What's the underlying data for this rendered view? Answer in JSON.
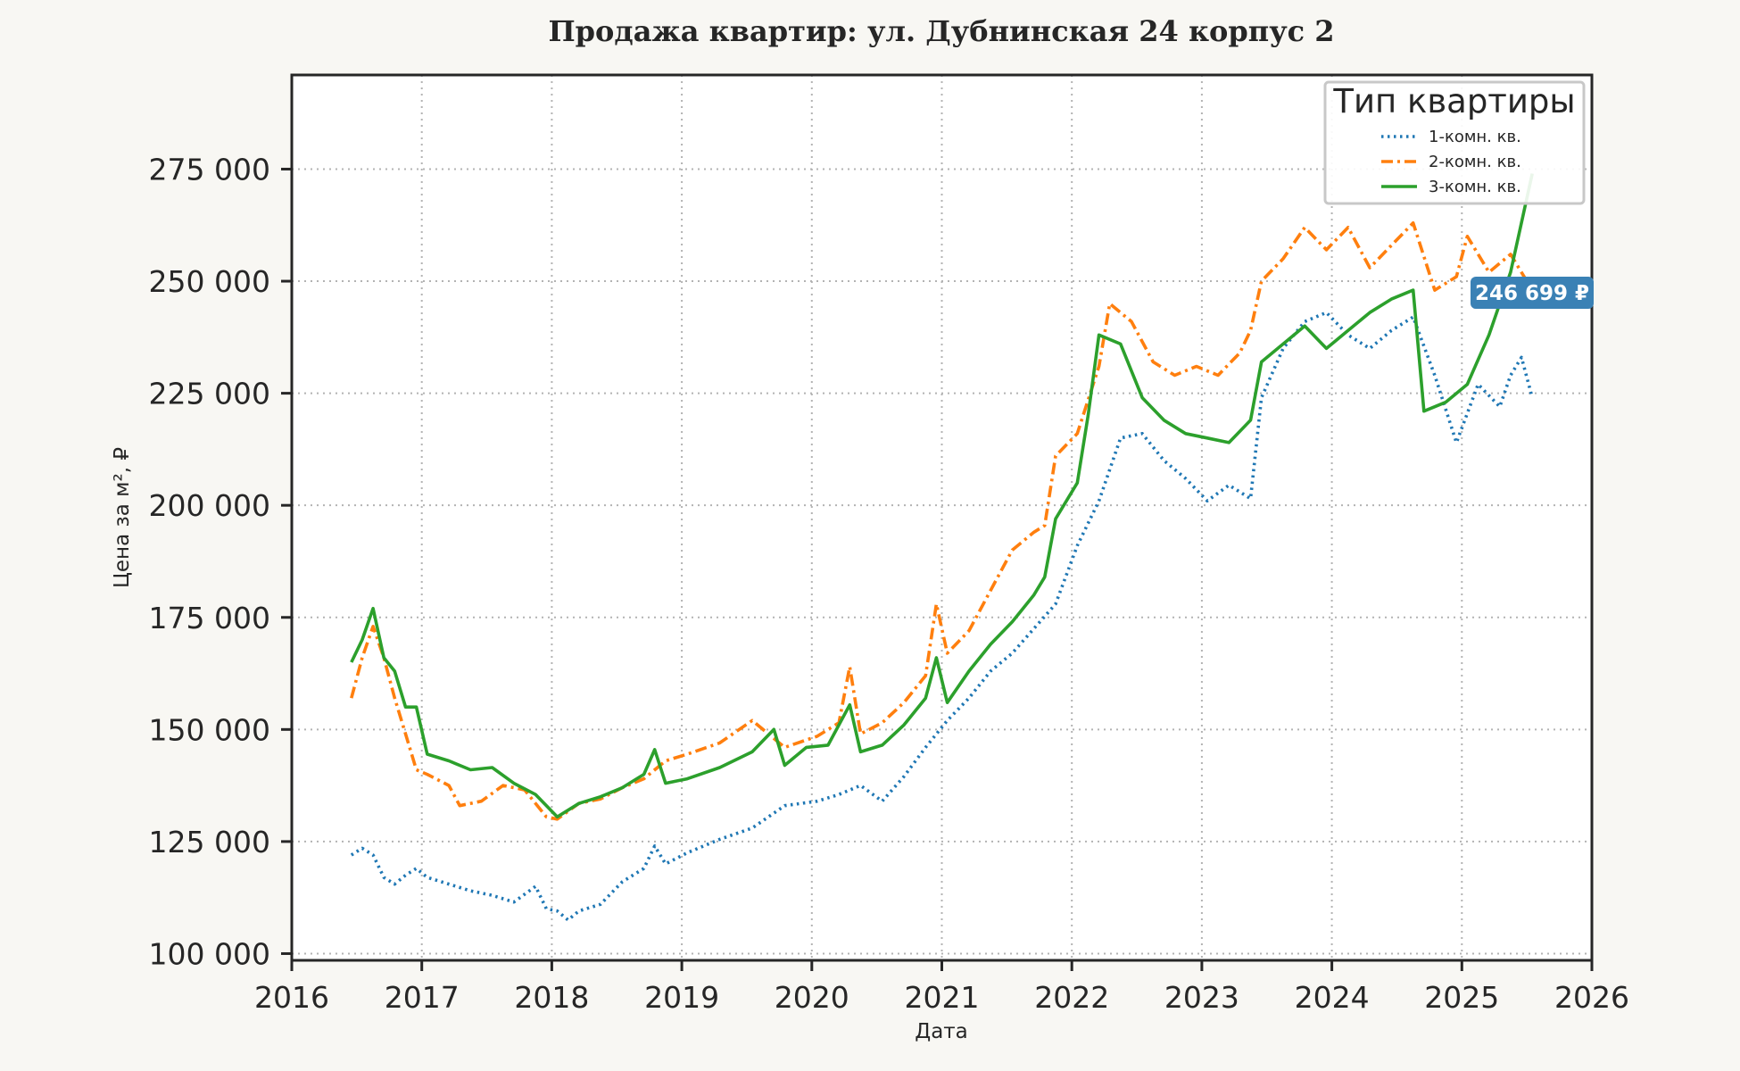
{
  "chart_data": {
    "type": "line",
    "title": "Продажа квартир: ул. Дубнинская 24 корпус 2",
    "xlabel": "Дата",
    "ylabel": "Цена за м², ₽",
    "xlim": [
      2016,
      2026
    ],
    "ylim": [
      98500,
      296000
    ],
    "x_ticks": [
      2016,
      2017,
      2018,
      2019,
      2020,
      2021,
      2022,
      2023,
      2024,
      2025,
      2026
    ],
    "y_ticks": [
      100000,
      125000,
      150000,
      175000,
      200000,
      225000,
      250000,
      275000
    ],
    "y_tick_labels": [
      "100 000",
      "125 000",
      "150 000",
      "175 000",
      "200 000",
      "225 000",
      "250 000",
      "275 000"
    ],
    "grid": true,
    "legend": {
      "title": "Тип квартиры",
      "placement": "top-right"
    },
    "last_value_label": "246 699 ₽",
    "colors": {
      "background": "#f8f7f3",
      "plot_background": "#ffffff",
      "grid": "#b3b3b3",
      "label_badge": "#3a81b5"
    },
    "series": [
      {
        "name": "1-комн. кв.",
        "color": "#1f77b4",
        "style": "dotted",
        "x": [
          "2016-06",
          "2016-07",
          "2016-08",
          "2016-09",
          "2016-10",
          "2016-11",
          "2016-12",
          "2017-01",
          "2017-03",
          "2017-05",
          "2017-07",
          "2017-09",
          "2017-11",
          "2017-12",
          "2018-01",
          "2018-02",
          "2018-03",
          "2018-05",
          "2018-07",
          "2018-09",
          "2018-10",
          "2018-11",
          "2019-01",
          "2019-04",
          "2019-07",
          "2019-10",
          "2020-01",
          "2020-03",
          "2020-05",
          "2020-07",
          "2020-09",
          "2020-11",
          "2021-01",
          "2021-03",
          "2021-05",
          "2021-07",
          "2021-09",
          "2021-11",
          "2022-01",
          "2022-03",
          "2022-05",
          "2022-07",
          "2022-09",
          "2022-11",
          "2023-01",
          "2023-03",
          "2023-05",
          "2023-06",
          "2023-08",
          "2023-10",
          "2023-12",
          "2024-02",
          "2024-04",
          "2024-06",
          "2024-08",
          "2024-10",
          "2024-12",
          "2025-02",
          "2025-04",
          "2025-05",
          "2025-06",
          "2025-07"
        ],
        "y": [
          122000,
          123500,
          122000,
          117000,
          115500,
          117500,
          119000,
          117000,
          115500,
          114000,
          113000,
          111500,
          115000,
          110000,
          109500,
          107500,
          109500,
          111000,
          116000,
          119000,
          124000,
          120000,
          122500,
          125500,
          128000,
          133000,
          134000,
          135500,
          137500,
          134000,
          139500,
          146000,
          152000,
          157000,
          163000,
          167000,
          172500,
          178000,
          191000,
          201000,
          215000,
          216000,
          210000,
          206000,
          201000,
          204500,
          201500,
          224000,
          235000,
          241000,
          243000,
          238000,
          235000,
          239000,
          242000,
          229000,
          214000,
          227000,
          222000,
          229000,
          233000,
          224000
        ]
      },
      {
        "name": "2-комн. кв.",
        "color": "#ff7f0e",
        "style": "dashdot",
        "x": [
          "2016-06",
          "2016-07",
          "2016-08",
          "2016-09",
          "2016-10",
          "2016-11",
          "2016-12",
          "2017-01",
          "2017-03",
          "2017-04",
          "2017-06",
          "2017-08",
          "2017-10",
          "2017-12",
          "2018-01",
          "2018-03",
          "2018-05",
          "2018-07",
          "2018-09",
          "2018-11",
          "2019-01",
          "2019-04",
          "2019-07",
          "2019-10",
          "2020-01",
          "2020-03",
          "2020-04",
          "2020-05",
          "2020-07",
          "2020-09",
          "2020-11",
          "2020-12",
          "2021-01",
          "2021-03",
          "2021-05",
          "2021-07",
          "2021-09",
          "2021-10",
          "2021-11",
          "2022-01",
          "2022-03",
          "2022-04",
          "2022-06",
          "2022-08",
          "2022-10",
          "2022-12",
          "2023-02",
          "2023-04",
          "2023-05",
          "2023-06",
          "2023-08",
          "2023-10",
          "2023-12",
          "2024-02",
          "2024-04",
          "2024-06",
          "2024-08",
          "2024-10",
          "2024-12",
          "2025-01",
          "2025-03",
          "2025-05",
          "2025-07"
        ],
        "y": [
          157000,
          166000,
          173000,
          166000,
          157000,
          149000,
          141000,
          140000,
          137500,
          133000,
          134000,
          137500,
          136500,
          130500,
          130000,
          133500,
          134500,
          137000,
          139000,
          143000,
          144500,
          147000,
          152000,
          146000,
          148500,
          151500,
          164000,
          149000,
          151500,
          156000,
          162000,
          178000,
          167000,
          172000,
          181000,
          190000,
          194000,
          195500,
          211000,
          216000,
          231000,
          245000,
          241000,
          232000,
          229000,
          231000,
          229000,
          234000,
          239000,
          250000,
          255000,
          262000,
          257000,
          262000,
          253000,
          258000,
          263000,
          248000,
          251000,
          260000,
          252000,
          256000,
          248000
        ]
      },
      {
        "name": "3-комн. кв.",
        "color": "#2ca02c",
        "style": "solid",
        "x": [
          "2016-06",
          "2016-07",
          "2016-08",
          "2016-09",
          "2016-10",
          "2016-11",
          "2016-12",
          "2017-01",
          "2017-03",
          "2017-05",
          "2017-07",
          "2017-09",
          "2017-11",
          "2018-01",
          "2018-03",
          "2018-05",
          "2018-07",
          "2018-09",
          "2018-10",
          "2018-11",
          "2019-01",
          "2019-04",
          "2019-07",
          "2019-09",
          "2019-10",
          "2019-12",
          "2020-02",
          "2020-04",
          "2020-05",
          "2020-07",
          "2020-09",
          "2020-11",
          "2020-12",
          "2021-01",
          "2021-03",
          "2021-05",
          "2021-07",
          "2021-09",
          "2021-10",
          "2021-11",
          "2022-01",
          "2022-02",
          "2022-03",
          "2022-05",
          "2022-07",
          "2022-09",
          "2022-11",
          "2023-01",
          "2023-03",
          "2023-05",
          "2023-06",
          "2023-08",
          "2023-10",
          "2023-12",
          "2024-02",
          "2024-04",
          "2024-06",
          "2024-08",
          "2024-09",
          "2024-11",
          "2025-01",
          "2025-03",
          "2025-05",
          "2025-07"
        ],
        "y": [
          165000,
          170000,
          177000,
          166000,
          163000,
          155000,
          155000,
          144500,
          143000,
          141000,
          141500,
          138000,
          135500,
          130500,
          133500,
          135000,
          137000,
          140000,
          145500,
          138000,
          139000,
          141500,
          145000,
          150000,
          142000,
          146000,
          146500,
          155500,
          145000,
          146500,
          151000,
          157000,
          166000,
          156000,
          163000,
          169000,
          174000,
          180000,
          184000,
          197000,
          205000,
          220000,
          238000,
          236000,
          224000,
          219000,
          216000,
          215000,
          214000,
          219000,
          232000,
          236000,
          240000,
          235000,
          239000,
          243000,
          246000,
          248000,
          221000,
          223000,
          227000,
          238000,
          252000,
          274000
        ]
      }
    ]
  }
}
